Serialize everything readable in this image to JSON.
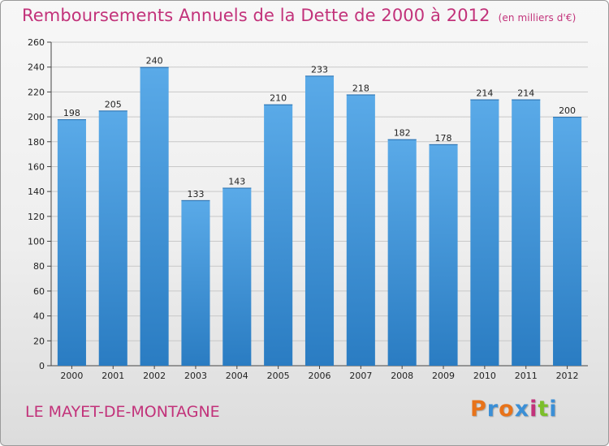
{
  "header": {
    "title": "Remboursements Annuels de la Dette de 2000 à 2012",
    "subtitle": "(en milliers d'€)"
  },
  "footer": {
    "place": "LE MAYET-DE-MONTAGNE",
    "brand": "Proxiti",
    "brand_colors": [
      "#e8731a",
      "#3b8fd6",
      "#e8731a",
      "#3b8fd6",
      "#c2327a",
      "#7cbf2a",
      "#3b8fd6"
    ]
  },
  "colors": {
    "bar_top": "#5aaae8",
    "bar_bottom": "#2a7cc2",
    "text_accent": "#c2327a"
  },
  "chart_data": {
    "type": "bar",
    "categories": [
      "2000",
      "2001",
      "2002",
      "2003",
      "2004",
      "2005",
      "2006",
      "2007",
      "2008",
      "2009",
      "2010",
      "2011",
      "2012"
    ],
    "values": [
      198,
      205,
      240,
      133,
      143,
      210,
      233,
      218,
      182,
      178,
      214,
      214,
      200
    ],
    "title": "Remboursements Annuels de la Dette de 2000 à 2012",
    "subtitle": "(en milliers d'€)",
    "xlabel": "",
    "ylabel": "",
    "ylim": [
      0,
      260
    ],
    "yticks": [
      0,
      20,
      40,
      60,
      80,
      100,
      120,
      140,
      160,
      180,
      200,
      220,
      240,
      260
    ],
    "grid": true,
    "legend": "none"
  }
}
